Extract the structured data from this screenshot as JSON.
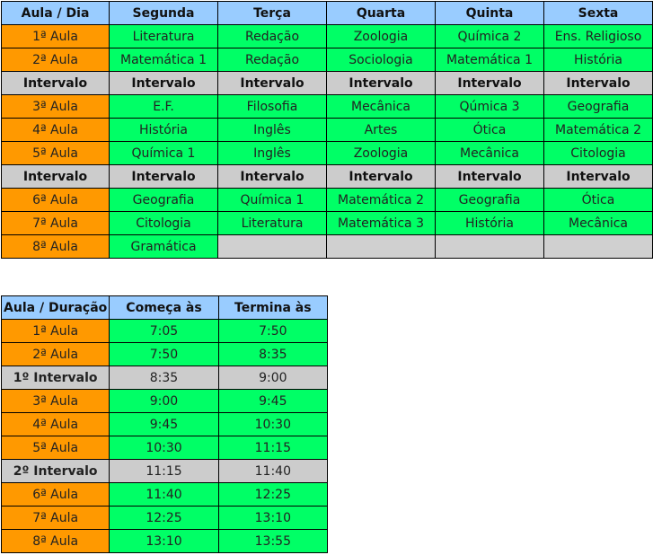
{
  "schedule": {
    "headers": [
      "Aula / Dia",
      "Segunda",
      "Terça",
      "Quarta",
      "Quinta",
      "Sexta"
    ],
    "rows": [
      {
        "type": "class",
        "label": "1ª Aula",
        "cells": [
          "Literatura",
          "Redação",
          "Zoologia",
          "Química 2",
          "Ens. Religioso"
        ]
      },
      {
        "type": "class",
        "label": "2ª Aula",
        "cells": [
          "Matemática 1",
          "Redação",
          "Sociologia",
          "Matemática 1",
          "História"
        ]
      },
      {
        "type": "break",
        "label": "Intervalo",
        "cells": [
          "Intervalo",
          "Intervalo",
          "Intervalo",
          "Intervalo",
          "Intervalo"
        ]
      },
      {
        "type": "class",
        "label": "3ª Aula",
        "cells": [
          "E.F.",
          "Filosofia",
          "Mecânica",
          "Qúmica 3",
          "Geografia"
        ]
      },
      {
        "type": "class",
        "label": "4ª Aula",
        "cells": [
          "História",
          "Inglês",
          "Artes",
          "Ótica",
          "Matemática 2"
        ]
      },
      {
        "type": "class",
        "label": "5ª Aula",
        "cells": [
          "Química 1",
          "Inglês",
          "Zoologia",
          "Mecânica",
          "Citologia"
        ]
      },
      {
        "type": "break",
        "label": "Intervalo",
        "cells": [
          "Intervalo",
          "Intervalo",
          "Intervalo",
          "Intervalo",
          "Intervalo"
        ]
      },
      {
        "type": "class",
        "label": "6ª Aula",
        "cells": [
          "Geografia",
          "Química 1",
          "Matemática 2",
          "Geografia",
          "Ótica"
        ]
      },
      {
        "type": "class",
        "label": "7ª Aula",
        "cells": [
          "Citologia",
          "Literatura",
          "Matemática 3",
          "História",
          "Mecânica"
        ]
      },
      {
        "type": "class",
        "label": "8ª Aula",
        "cells": [
          "Gramática",
          "",
          "",
          "",
          ""
        ]
      }
    ]
  },
  "times": {
    "headers": [
      "Aula / Duração",
      "Começa às",
      "Termina às"
    ],
    "rows": [
      {
        "type": "class",
        "label": "1ª Aula",
        "start": "7:05",
        "end": "7:50"
      },
      {
        "type": "class",
        "label": "2ª Aula",
        "start": "7:50",
        "end": "8:35"
      },
      {
        "type": "break",
        "label": "1º Intervalo",
        "start": "8:35",
        "end": "9:00"
      },
      {
        "type": "class",
        "label": "3ª Aula",
        "start": "9:00",
        "end": "9:45"
      },
      {
        "type": "class",
        "label": "4ª Aula",
        "start": "9:45",
        "end": "10:30"
      },
      {
        "type": "class",
        "label": "5ª Aula",
        "start": "10:30",
        "end": "11:15"
      },
      {
        "type": "break",
        "label": "2º Intervalo",
        "start": "11:15",
        "end": "11:40"
      },
      {
        "type": "class",
        "label": "6ª Aula",
        "start": "11:40",
        "end": "12:25"
      },
      {
        "type": "class",
        "label": "7ª Aula",
        "start": "12:25",
        "end": "13:10"
      },
      {
        "type": "class",
        "label": "8ª Aula",
        "start": "13:10",
        "end": "13:55"
      }
    ]
  },
  "colors": {
    "header": "#99ccff",
    "label": "#ff9900",
    "cell": "#00ff66",
    "break": "#cccccc"
  }
}
